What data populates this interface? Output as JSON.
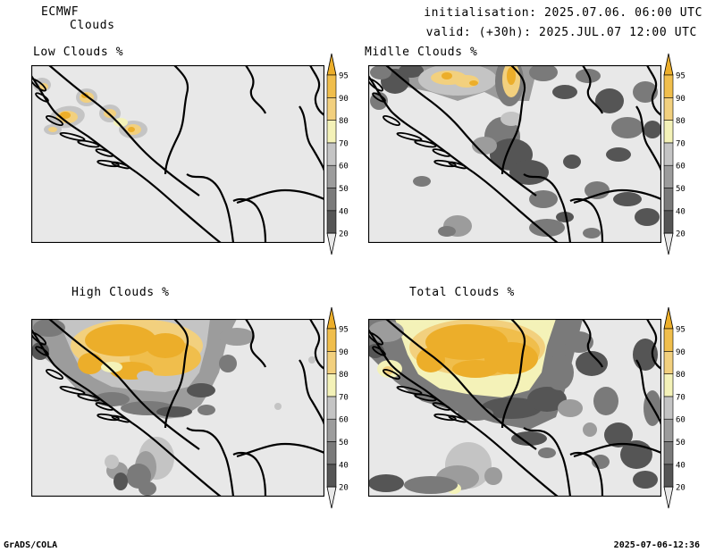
{
  "header": {
    "model": "ECMWF",
    "product": "Clouds",
    "initialisation": "initialisation: 2025.07.06. 06:00 UTC",
    "valid": "valid: (+30h): 2025.JUL.07 12:00 UTC"
  },
  "footer": {
    "software": "GrADS/COLA",
    "timestamp": "2025-07-06-12:36"
  },
  "colorbar": {
    "levels": [
      "20",
      "40",
      "50",
      "60",
      "70",
      "80",
      "90",
      "95"
    ],
    "colors": {
      "c0_20": "#e8e8e8",
      "c20_40": "#555555",
      "c40_50": "#7a7a7a",
      "c50_60": "#9c9c9c",
      "c60_70": "#c4c4c4",
      "c70_80": "#f4f2b8",
      "c80_90": "#f2d07e",
      "c90_95": "#f0be4c",
      "c95": "#ecae2a"
    }
  },
  "panels": [
    {
      "id": "low",
      "title": "Low Clouds %"
    },
    {
      "id": "middle",
      "title": "Midlle Clouds %"
    },
    {
      "id": "high",
      "title": "High Clouds %"
    },
    {
      "id": "total",
      "title": "Total Clouds %"
    }
  ]
}
